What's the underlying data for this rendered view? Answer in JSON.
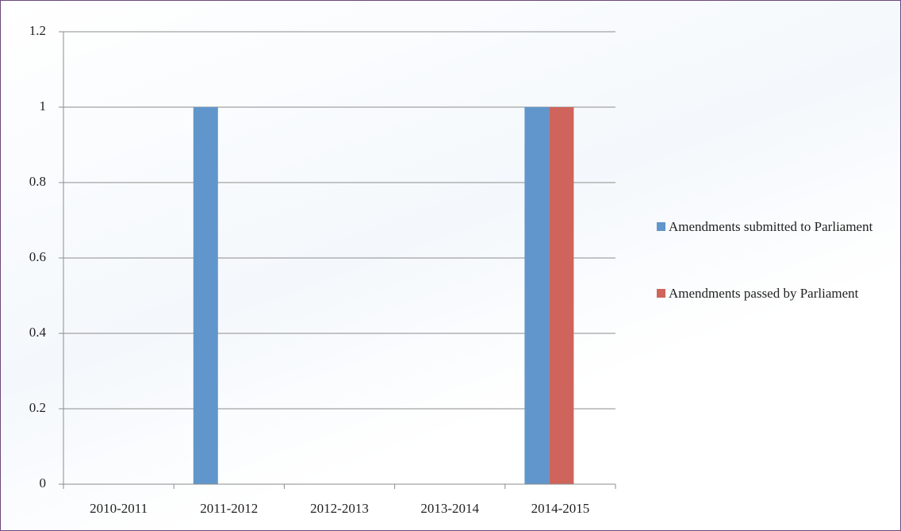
{
  "chart_data": {
    "type": "bar",
    "categories": [
      "2010-2011",
      "2011-2012",
      "2012-2013",
      "2013-2014",
      "2014-2015"
    ],
    "series": [
      {
        "name": "Amendments submitted to Parliament",
        "color": "#6096cb",
        "values": [
          0,
          1,
          0,
          0,
          1
        ]
      },
      {
        "name": "Amendments passed by Parliament",
        "color": "#cf645c",
        "values": [
          0,
          0,
          0,
          0,
          1
        ]
      }
    ],
    "ylim": [
      0,
      1.2
    ],
    "yticks": [
      0,
      0.2,
      0.4,
      0.6,
      0.8,
      1,
      1.2
    ],
    "grid": true,
    "legend": "right"
  }
}
